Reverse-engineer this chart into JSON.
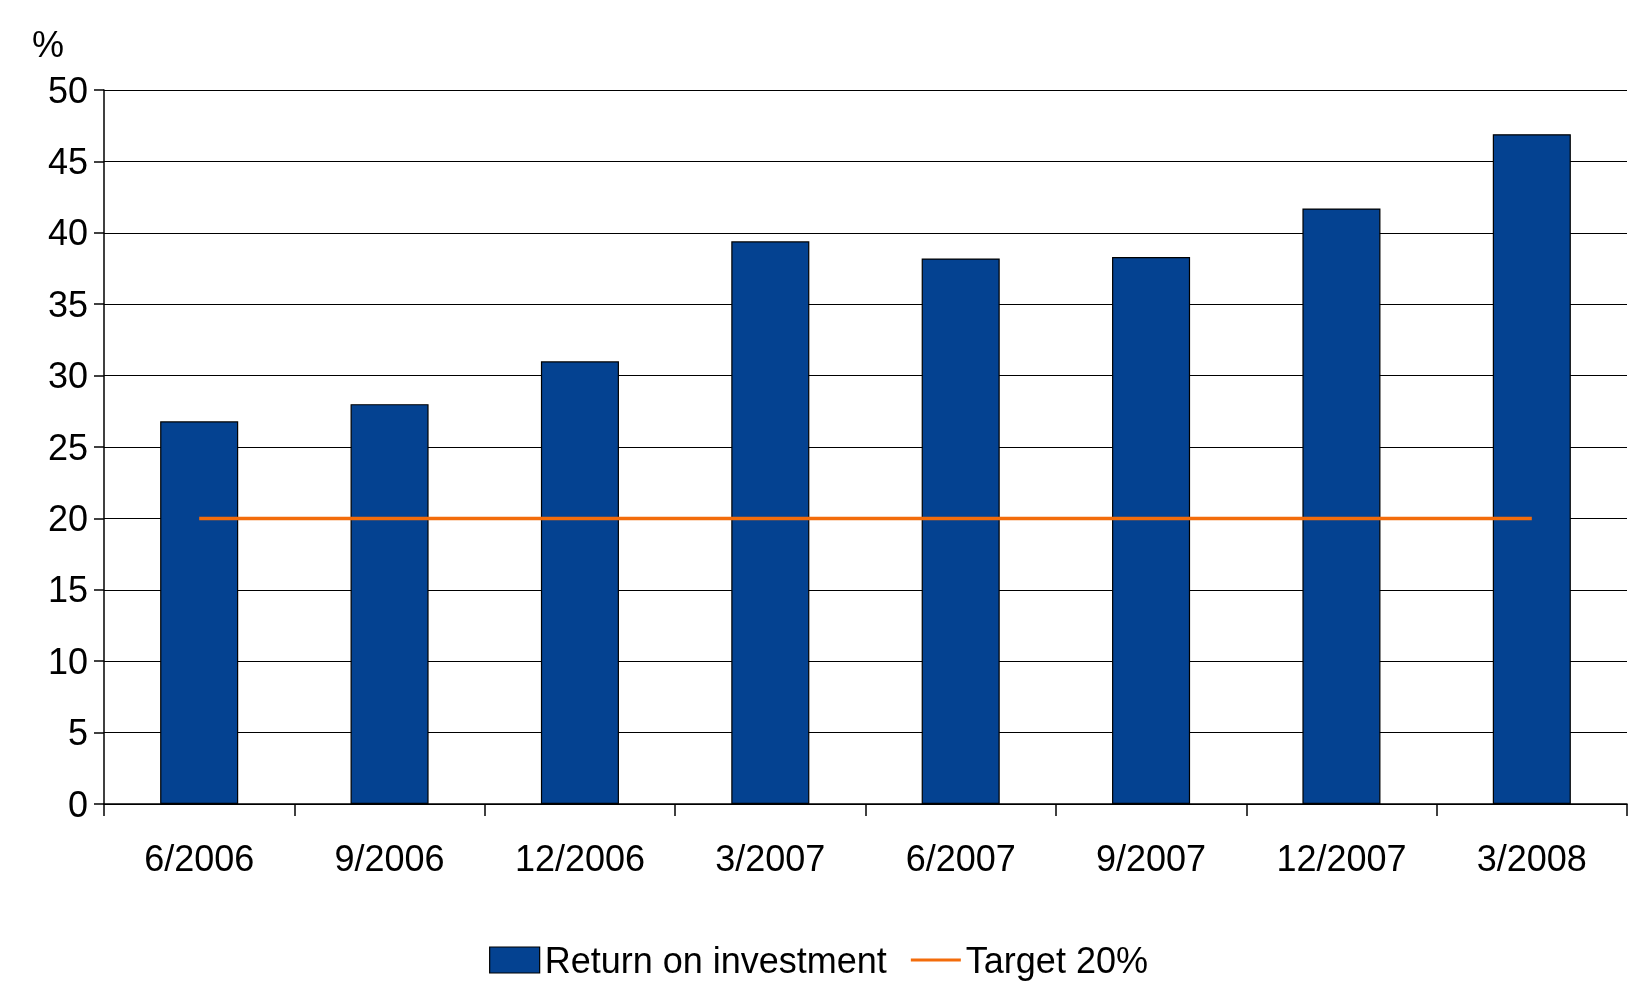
{
  "chart_data": {
    "type": "bar",
    "ylabel": "%",
    "categories": [
      "6/2006",
      "9/2006",
      "12/2006",
      "3/2007",
      "6/2007",
      "9/2007",
      "12/2007",
      "3/2008"
    ],
    "series": [
      {
        "name": "Return on investment",
        "color": "#044291",
        "values": [
          26.8,
          28.0,
          31.0,
          39.4,
          38.2,
          38.3,
          41.7,
          46.9
        ]
      },
      {
        "name": "Target 20%",
        "type": "line",
        "color": "#f36c0b",
        "values": [
          20,
          20,
          20,
          20,
          20,
          20,
          20,
          20
        ]
      }
    ],
    "ylim": [
      0,
      50
    ],
    "yticks": [
      0,
      5,
      10,
      15,
      20,
      25,
      30,
      35,
      40,
      45,
      50
    ],
    "grid": "y",
    "legend": "bottom",
    "line_style": "solid"
  }
}
